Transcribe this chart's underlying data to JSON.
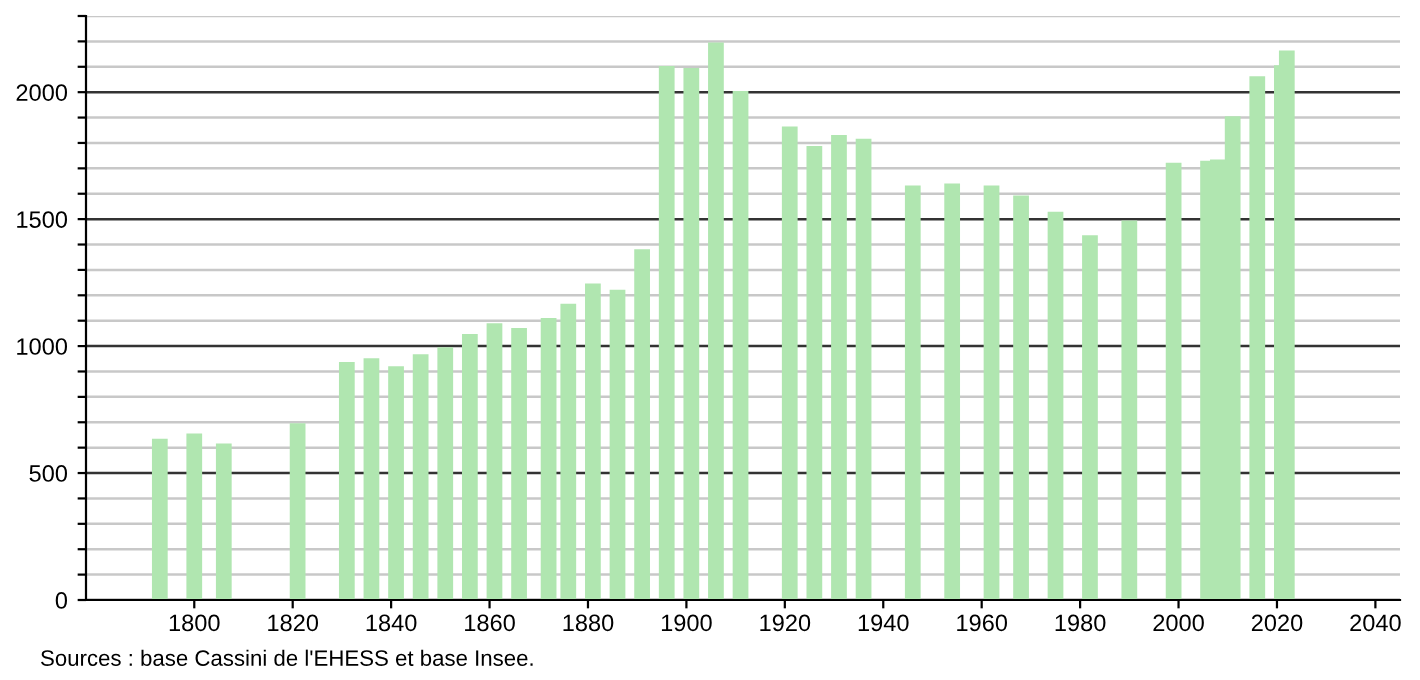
{
  "chart_data": {
    "type": "bar",
    "color": "#b0e6b0",
    "x": [
      1793,
      1800,
      1806,
      1821,
      1831,
      1836,
      1841,
      1846,
      1851,
      1856,
      1861,
      1866,
      1872,
      1876,
      1881,
      1886,
      1891,
      1896,
      1901,
      1906,
      1911,
      1921,
      1926,
      1931,
      1936,
      1946,
      1954,
      1962,
      1968,
      1975,
      1982,
      1990,
      1999,
      2006,
      2008,
      2011,
      2016,
      2021,
      2022
    ],
    "values": [
      635,
      656,
      616,
      696,
      937,
      952,
      921,
      968,
      995,
      1048,
      1090,
      1071,
      1111,
      1167,
      1246,
      1222,
      1381,
      2103,
      2095,
      2196,
      2005,
      1865,
      1788,
      1831,
      1817,
      1632,
      1640,
      1632,
      1593,
      1529,
      1437,
      1495,
      1722,
      1730,
      1735,
      1905,
      2063,
      2106,
      2164
    ],
    "xlim": [
      1778,
      2045
    ],
    "xticks": [
      1800,
      1820,
      1840,
      1860,
      1880,
      1900,
      1920,
      1940,
      1960,
      1980,
      2000,
      2020,
      2040
    ],
    "ylim": [
      0,
      2300
    ],
    "yticks": [
      0,
      {
        "value": 100,
        "label": null
      },
      {
        "value": 200,
        "label": null
      },
      {
        "value": 300,
        "label": null
      },
      {
        "value": 400,
        "label": null
      },
      500,
      {
        "value": 600,
        "label": null
      },
      {
        "value": 700,
        "label": null
      },
      {
        "value": 800,
        "label": null
      },
      {
        "value": 900,
        "label": null
      },
      1000,
      {
        "value": 1100,
        "label": null
      },
      {
        "value": 1200,
        "label": null
      },
      {
        "value": 1300,
        "label": null
      },
      {
        "value": 1400,
        "label": null
      },
      1500,
      {
        "value": 1600,
        "label": null
      },
      {
        "value": 1700,
        "label": null
      },
      {
        "value": 1800,
        "label": null
      },
      {
        "value": 1900,
        "label": null
      },
      2000,
      {
        "value": 2100,
        "label": null
      },
      {
        "value": 2200,
        "label": null
      },
      {
        "value": 2300,
        "label": null
      }
    ],
    "grid": "y",
    "annotations": [
      "Sources : base Cassini de l'EHESS et base Insee."
    ]
  }
}
